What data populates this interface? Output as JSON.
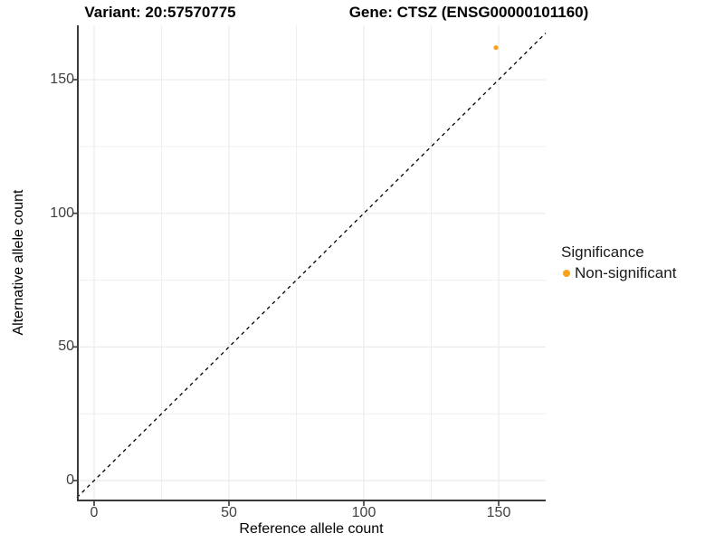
{
  "titles": {
    "variant": "Variant: 20:57570775",
    "gene": "Gene: CTSZ (ENSG00000101160)"
  },
  "axes": {
    "x": {
      "title": "Reference allele count"
    },
    "y": {
      "title": "Alternative allele count"
    }
  },
  "legend": {
    "title": "Significance",
    "entries": [
      {
        "label": "Non-significant",
        "color": "#FAA21E"
      }
    ]
  },
  "colors": {
    "background": "#ffffff",
    "grid": "#ebebeb",
    "axis": "#3a3a3a",
    "tick_text": "#404040",
    "title_text": "#000000",
    "reference_line": "#000000",
    "point": "#FAA21E"
  },
  "chart_data": {
    "type": "scatter",
    "title": "Variant: 20:57570775 | Gene: CTSZ (ENSG00000101160)",
    "xlabel": "Reference allele count",
    "ylabel": "Alternative allele count",
    "x_ticks": [
      0,
      50,
      100,
      150
    ],
    "y_ticks": [
      0,
      50,
      100,
      150
    ],
    "xlim": [
      -6.5,
      167.5
    ],
    "ylim": [
      -7,
      170
    ],
    "grid": {
      "minor_x": [
        25,
        75,
        125
      ],
      "minor_y": [
        25,
        75,
        125
      ]
    },
    "reference_line": {
      "style": "dashed",
      "slope": 1,
      "intercept": 0,
      "meaning": "identity line y = x"
    },
    "series": [
      {
        "name": "Non-significant",
        "color": "#FAA21E",
        "points": [
          {
            "x": 149,
            "y": 162
          }
        ]
      }
    ],
    "legend_position": "right"
  }
}
